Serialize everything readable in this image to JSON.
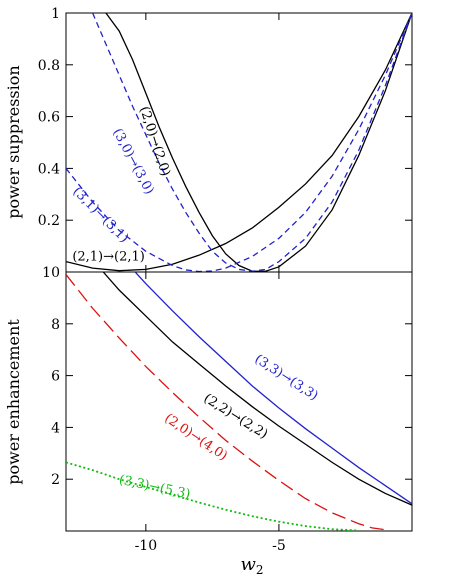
{
  "chart_data": [
    {
      "type": "line",
      "ylabel": "power suppression",
      "xlim": [
        -13,
        0
      ],
      "ylim": [
        0,
        1
      ],
      "xticks": [
        -10,
        -5
      ],
      "yticks": [
        0.2,
        0.4,
        0.6,
        0.8,
        1
      ],
      "ytick_labels": [
        "0.2",
        "0.4",
        "0.6",
        "0.8",
        "1"
      ],
      "series": [
        {
          "name": "(2,1)→(2,1)",
          "color": "#000000",
          "style": "solid",
          "x": [
            -13,
            -12,
            -11,
            -10,
            -9,
            -8,
            -7,
            -6,
            -5,
            -4,
            -3,
            -2,
            -1,
            0
          ],
          "y": [
            0.04,
            0.015,
            0.005,
            0.01,
            0.03,
            0.065,
            0.11,
            0.17,
            0.25,
            0.34,
            0.45,
            0.6,
            0.78,
            1.0
          ]
        },
        {
          "name": "(2,0)→(2,0)",
          "color": "#000000",
          "style": "solid",
          "x": [
            -11.5,
            -11,
            -10.5,
            -10,
            -9.5,
            -9,
            -8.5,
            -8,
            -7.5,
            -7,
            -6.5,
            -6,
            -5.5,
            -5,
            -4,
            -3,
            -2,
            -1,
            0
          ],
          "y": [
            1.0,
            0.93,
            0.82,
            0.69,
            0.56,
            0.44,
            0.33,
            0.23,
            0.14,
            0.07,
            0.025,
            0.003,
            0.003,
            0.02,
            0.1,
            0.24,
            0.45,
            0.7,
            1.0
          ]
        },
        {
          "name": "(3,0)→(3,0)",
          "color": "#2222cc",
          "style": "dashed",
          "x": [
            -12,
            -11.5,
            -11,
            -10.5,
            -10,
            -9.5,
            -9,
            -8.5,
            -8,
            -7.5,
            -7,
            -6.5,
            -6,
            -5.5,
            -5,
            -4,
            -3,
            -2,
            -1,
            0
          ],
          "y": [
            1.0,
            0.88,
            0.76,
            0.64,
            0.53,
            0.42,
            0.32,
            0.23,
            0.15,
            0.08,
            0.035,
            0.01,
            0.003,
            0.01,
            0.04,
            0.13,
            0.27,
            0.47,
            0.72,
            1.0
          ]
        },
        {
          "name": "(3,1)→(3,1)",
          "color": "#2222cc",
          "style": "dashed",
          "x": [
            -13,
            -12,
            -11,
            -10,
            -9,
            -8.5,
            -8,
            -7.5,
            -7,
            -6,
            -5,
            -4,
            -3,
            -2,
            -1,
            0
          ],
          "y": [
            0.4,
            0.27,
            0.16,
            0.08,
            0.025,
            0.008,
            0.002,
            0.004,
            0.015,
            0.06,
            0.13,
            0.23,
            0.37,
            0.55,
            0.76,
            1.0
          ]
        }
      ],
      "annotations": [
        {
          "text": "(2,1)→(2,1)",
          "x": -11.4,
          "y": 0.045,
          "rotate": 0,
          "color": "#000000"
        },
        {
          "text": "(2,0)→(2,0)",
          "x": -9.8,
          "y": 0.5,
          "rotate": 72,
          "color": "#000000"
        },
        {
          "text": "(3,0)→(3,0)",
          "x": -10.6,
          "y": 0.42,
          "rotate": 62,
          "color": "#2222cc"
        },
        {
          "text": "(3,1)→(3,1)",
          "x": -11.8,
          "y": 0.21,
          "rotate": 45,
          "color": "#2222cc"
        }
      ]
    },
    {
      "type": "line",
      "xlabel": "w",
      "xlabel_sub": "2",
      "ylabel": "power enhancement",
      "xlim": [
        -13,
        0
      ],
      "ylim": [
        0,
        10
      ],
      "xticks": [
        -10,
        -5
      ],
      "xtick_labels": [
        "-10",
        "-5"
      ],
      "yticks": [
        2,
        4,
        6,
        8,
        10
      ],
      "ytick_labels": [
        "2",
        "4",
        "6",
        "8",
        "10"
      ],
      "series": [
        {
          "name": "(3,3)→(3,3)",
          "color": "#2222cc",
          "style": "solid",
          "x": [
            -10.4,
            -10,
            -9,
            -8,
            -7,
            -6,
            -5,
            -4,
            -3,
            -2,
            -1,
            0
          ],
          "y": [
            10.0,
            9.55,
            8.5,
            7.5,
            6.55,
            5.6,
            4.75,
            3.95,
            3.2,
            2.45,
            1.75,
            1.05
          ]
        },
        {
          "name": "(2,2)→(2,2)",
          "color": "#000000",
          "style": "solid",
          "x": [
            -11.6,
            -11,
            -10,
            -9,
            -8,
            -7,
            -6,
            -5,
            -4,
            -3,
            -2,
            -1,
            0
          ],
          "y": [
            10.0,
            9.3,
            8.3,
            7.3,
            6.45,
            5.6,
            4.8,
            4.05,
            3.35,
            2.65,
            2.0,
            1.45,
            1.0
          ]
        },
        {
          "name": "(2,0)→(4,0)",
          "color": "#dd1111",
          "style": "longdash",
          "x": [
            -13,
            -12,
            -11,
            -10,
            -9,
            -8,
            -7,
            -6,
            -5,
            -4,
            -3,
            -2,
            -1.5,
            -1
          ],
          "y": [
            9.9,
            8.6,
            7.45,
            6.35,
            5.35,
            4.4,
            3.5,
            2.7,
            1.95,
            1.25,
            0.7,
            0.28,
            0.12,
            0.05
          ]
        },
        {
          "name": "(3,3)→(5,3)",
          "color": "#11bb11",
          "style": "dotted",
          "x": [
            -13,
            -12,
            -11,
            -10,
            -9,
            -8,
            -7,
            -6,
            -5,
            -4,
            -3,
            -2
          ],
          "y": [
            2.65,
            2.35,
            2.0,
            1.7,
            1.4,
            1.1,
            0.82,
            0.57,
            0.36,
            0.19,
            0.07,
            0.02
          ]
        }
      ],
      "annotations": [
        {
          "text": "(3,3)→(3,3)",
          "x": -4.8,
          "y": 5.8,
          "rotate": 33,
          "color": "#2222cc"
        },
        {
          "text": "(2,2)→(2,2)",
          "x": -6.7,
          "y": 4.3,
          "rotate": 32,
          "color": "#000000"
        },
        {
          "text": "(2,0)→(4,0)",
          "x": -8.2,
          "y": 3.5,
          "rotate": 34,
          "color": "#dd1111"
        },
        {
          "text": "(3,3)→(5,3)",
          "x": -9.7,
          "y": 1.55,
          "rotate": 12,
          "color": "#11bb11"
        }
      ]
    }
  ]
}
